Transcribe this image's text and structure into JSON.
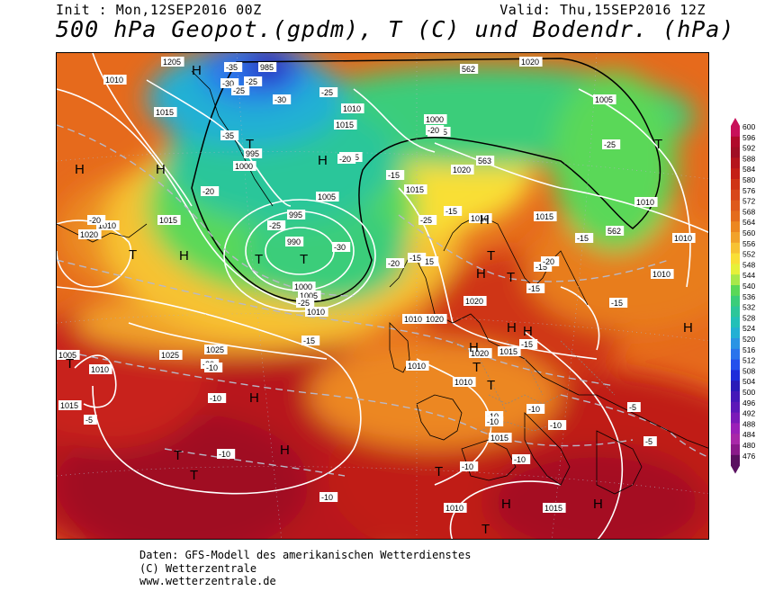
{
  "header": {
    "init": "Init : Mon,12SEP2016 00Z",
    "valid": "Valid: Thu,15SEP2016 12Z",
    "title": "500 hPa Geopot.(gpdm), T (C) und Bodendr. (hPa)"
  },
  "legend": {
    "levels": [
      600,
      596,
      592,
      588,
      584,
      580,
      576,
      572,
      568,
      564,
      560,
      556,
      552,
      548,
      544,
      540,
      536,
      532,
      528,
      524,
      520,
      516,
      512,
      508,
      504,
      500,
      496,
      492,
      488,
      484,
      480,
      476
    ],
    "colors": [
      "#c8105a",
      "#b00a2a",
      "#a00e24",
      "#b5141c",
      "#c41f16",
      "#cf3415",
      "#d8471a",
      "#de5a1c",
      "#e46c1c",
      "#ec8720",
      "#f1a22a",
      "#f7c233",
      "#f9df36",
      "#e6f03a",
      "#a8e84a",
      "#5ad858",
      "#3acd7a",
      "#2cc69a",
      "#22c0b8",
      "#22b0d4",
      "#2a94e4",
      "#2a74ec",
      "#2450ec",
      "#1e2cda",
      "#2a1ab8",
      "#4418b8",
      "#5c18b8",
      "#7a1ab8",
      "#9a20b8",
      "#a828a8",
      "#8a1a8a",
      "#5a1060"
    ]
  },
  "map": {
    "pressure_labels": [
      "1205",
      "1010",
      "1015",
      "995",
      "1000",
      "1005",
      "985",
      "1010",
      "1015",
      "1000",
      "1005",
      "1015",
      "1005",
      "1020",
      "1020",
      "1015",
      "1010",
      "1020",
      "995",
      "990",
      "1000",
      "1005",
      "1010",
      "1020",
      "1015",
      "1015",
      "1010",
      "1020",
      "1025",
      "1010",
      "1015",
      "1010",
      "1020",
      "1015",
      "1025",
      "1010",
      "1015",
      "1010",
      "1010",
      "1005",
      "1010",
      "1015",
      "1010",
      "1010",
      "562",
      "563",
      "562"
    ],
    "temperature_labels": [
      "-35",
      "-30",
      "-25",
      "-25",
      "-35",
      "-30",
      "-25",
      "-20",
      "-20",
      "-25",
      "-30",
      "-25",
      "-20",
      "-20",
      "-25",
      "-25",
      "-15",
      "-15",
      "-15",
      "-15",
      "-15",
      "-20",
      "-15",
      "-15",
      "-20",
      "-20",
      "-15",
      "-15",
      "-15",
      "-10",
      "-10",
      "-10",
      "-10",
      "-10",
      "-10",
      "-10",
      "-10",
      "-5",
      "-10",
      "-10",
      "-5",
      "-5"
    ],
    "pressure_centers": [
      "H",
      "T",
      "H",
      "T",
      "H",
      "T",
      "H",
      "H",
      "T",
      "H",
      "H",
      "T",
      "T",
      "H",
      "H",
      "T",
      "T",
      "H",
      "T",
      "H",
      "T",
      "H",
      "T",
      "T",
      "H",
      "T",
      "H",
      "T",
      "H"
    ]
  },
  "footer": {
    "line1": "Daten: GFS-Modell des amerikanischen Wetterdienstes",
    "line2": "(C) Wetterzentrale",
    "line3": "www.wetterzentrale.de"
  }
}
